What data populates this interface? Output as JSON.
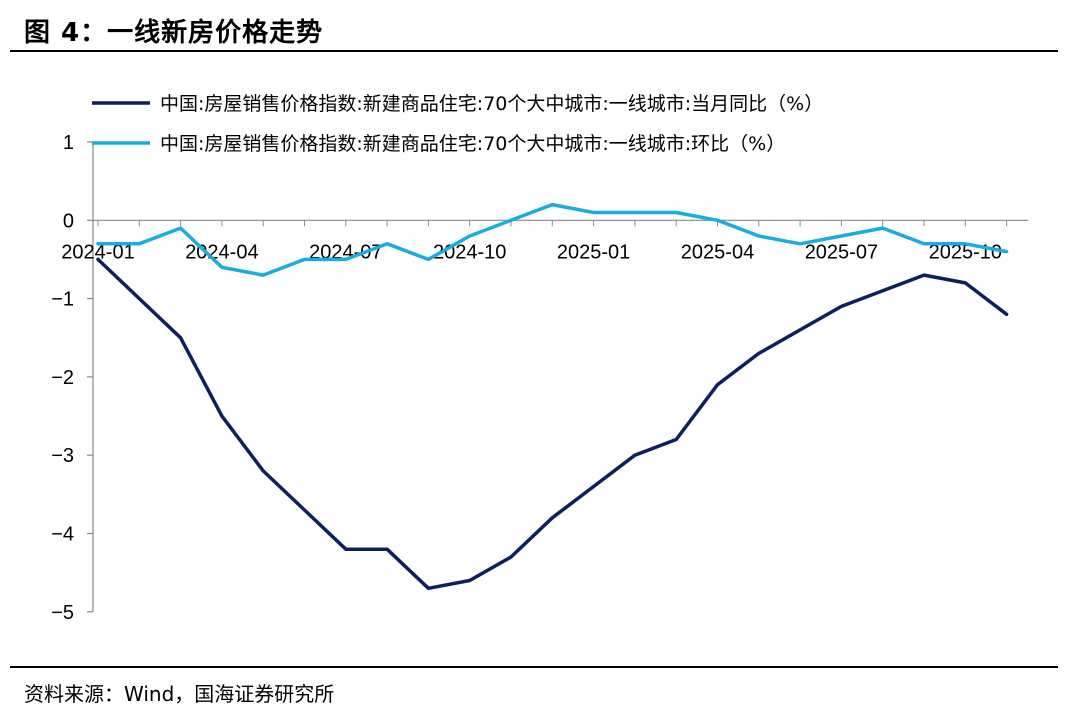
{
  "title": "图 4：一线新房价格走势",
  "source": "资料来源：Wind，国海证券研究所",
  "chart_data": {
    "type": "line",
    "x": [
      "2024-01",
      "2024-02",
      "2024-03",
      "2024-04",
      "2024-05",
      "2024-06",
      "2024-07",
      "2024-08",
      "2024-09",
      "2024-10",
      "2024-11",
      "2024-12",
      "2025-01",
      "2025-02",
      "2025-03",
      "2025-04",
      "2025-05",
      "2025-06",
      "2025-07",
      "2025-08",
      "2025-09",
      "2025-10",
      "2025-11"
    ],
    "xticks": [
      "2024-01",
      "2024-04",
      "2024-07",
      "2024-10",
      "2025-01",
      "2025-04",
      "2025-07",
      "2025-10"
    ],
    "yticks": [
      "1",
      "0",
      "−1",
      "−2",
      "−3",
      "−4",
      "−5"
    ],
    "ylim": [
      -5,
      1
    ],
    "legend_position": "top",
    "series": [
      {
        "name": "中国:房屋销售价格指数:新建商品住宅:70个大中城市:一线城市:当月同比（%）",
        "color": "#0d1f5c",
        "values": [
          -0.5,
          -1.0,
          -1.5,
          -2.5,
          -3.2,
          -3.7,
          -4.2,
          -4.2,
          -4.7,
          -4.6,
          -4.3,
          -3.8,
          -3.4,
          -3.0,
          -2.8,
          -2.1,
          -1.7,
          -1.4,
          -1.1,
          -0.9,
          -0.7,
          -0.8,
          -1.2
        ]
      },
      {
        "name": "中国:房屋销售价格指数:新建商品住宅:70个大中城市:一线城市:环比（%）",
        "color": "#1aace0",
        "values": [
          -0.3,
          -0.3,
          -0.1,
          -0.6,
          -0.7,
          -0.5,
          -0.5,
          -0.3,
          -0.5,
          -0.2,
          0.0,
          0.2,
          0.1,
          0.1,
          0.1,
          0.0,
          -0.2,
          -0.3,
          -0.2,
          -0.1,
          -0.3,
          -0.3,
          -0.4
        ]
      }
    ]
  }
}
